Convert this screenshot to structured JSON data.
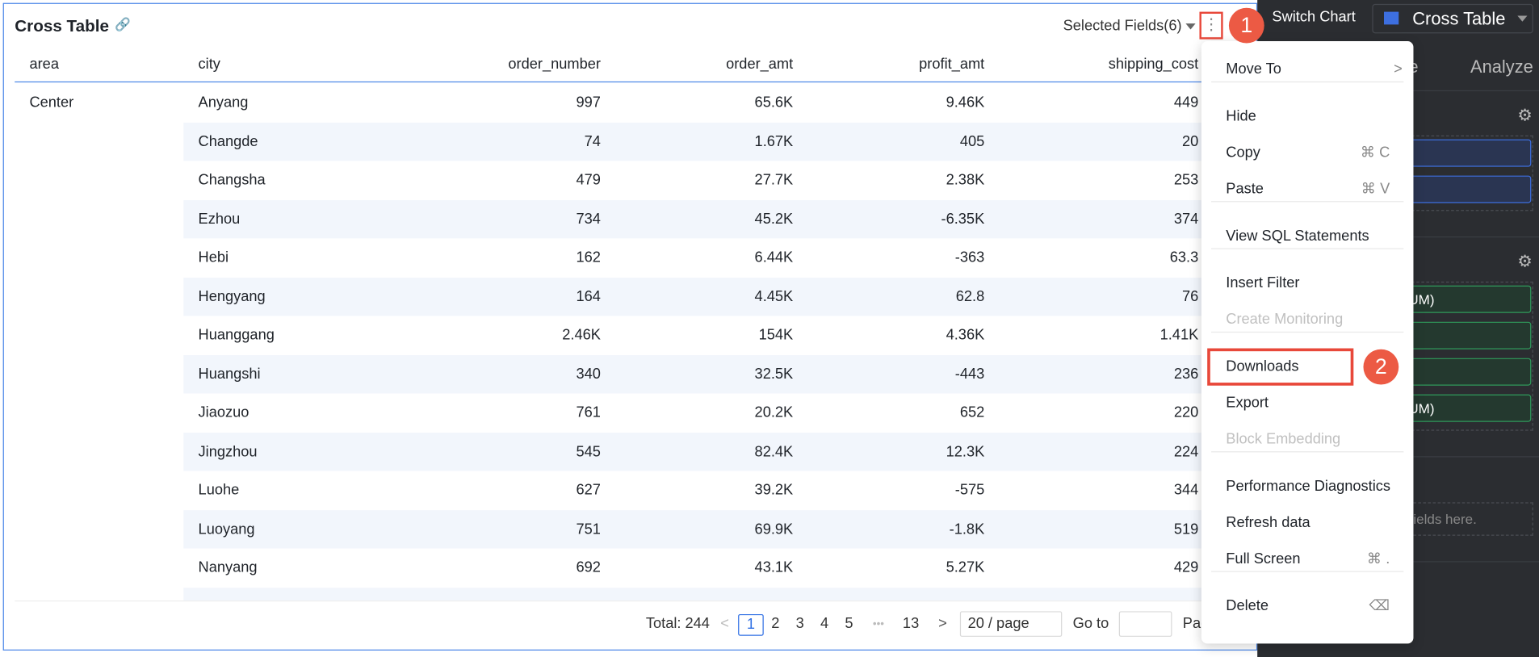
{
  "header": {
    "title": "Cross Table",
    "selected_fields": "Selected Fields(6)",
    "step_markers": [
      "1",
      "2"
    ]
  },
  "table": {
    "columns": [
      "area",
      "city",
      "order_number",
      "order_amt",
      "profit_amt",
      "shipping_cost"
    ],
    "groups": [
      {
        "area": "Center",
        "rows": [
          [
            "Anyang",
            "997",
            "65.6K",
            "9.46K",
            "449"
          ],
          [
            "Changde",
            "74",
            "1.67K",
            "405",
            "20"
          ],
          [
            "Changsha",
            "479",
            "27.7K",
            "2.38K",
            "253"
          ],
          [
            "Ezhou",
            "734",
            "45.2K",
            "-6.35K",
            "374"
          ],
          [
            "Hebi",
            "162",
            "6.44K",
            "-363",
            "63.3"
          ],
          [
            "Hengyang",
            "164",
            "4.45K",
            "62.8",
            "76"
          ],
          [
            "Huanggang",
            "2.46K",
            "154K",
            "4.36K",
            "1.41K"
          ],
          [
            "Huangshi",
            "340",
            "32.5K",
            "-443",
            "236"
          ],
          [
            "Jiaozuo",
            "761",
            "20.2K",
            "652",
            "220"
          ],
          [
            "Jingzhou",
            "545",
            "82.4K",
            "12.3K",
            "224"
          ],
          [
            "Luohe",
            "627",
            "39.2K",
            "-575",
            "344"
          ],
          [
            "Luoyang",
            "751",
            "69.9K",
            "-1.8K",
            "519"
          ],
          [
            "Nanyang",
            "692",
            "43.1K",
            "5.27K",
            "429"
          ]
        ]
      }
    ]
  },
  "pagination": {
    "total": "Total: 244",
    "pages": [
      "1",
      "2",
      "3",
      "4",
      "5",
      "•••",
      "13"
    ],
    "current_page": 1,
    "page_size": "20 / page",
    "goto": "Go to",
    "page_suffix": "Pag"
  },
  "menu": {
    "sections": [
      [
        {
          "label": "Move To",
          "submenu": true
        }
      ],
      [
        {
          "label": "Hide"
        },
        {
          "label": "Copy",
          "shortcut": "⌘ C"
        },
        {
          "label": "Paste",
          "shortcut": "⌘ V"
        }
      ],
      [
        {
          "label": "View SQL Statements"
        }
      ],
      [
        {
          "label": "Insert Filter"
        },
        {
          "label": "Create Monitoring",
          "disabled": true
        }
      ],
      [
        {
          "label": "Downloads",
          "highlighted": true
        },
        {
          "label": "Export"
        },
        {
          "label": "Block Embedding",
          "disabled": true
        }
      ],
      [
        {
          "label": "Performance Diagnostics"
        },
        {
          "label": "Refresh data"
        },
        {
          "label": "Full Screen",
          "shortcut": "⌘ ."
        }
      ],
      [
        {
          "label": "Delete",
          "shortcut": "⌫"
        }
      ]
    ]
  },
  "side_panel": {
    "switch_chart": "Switch Chart",
    "chart_type": "Cross Table",
    "tabs": [
      "e",
      "Analyze"
    ],
    "field_pills": [
      "UM)",
      "UM)"
    ],
    "drop_hint": "fields here."
  }
}
